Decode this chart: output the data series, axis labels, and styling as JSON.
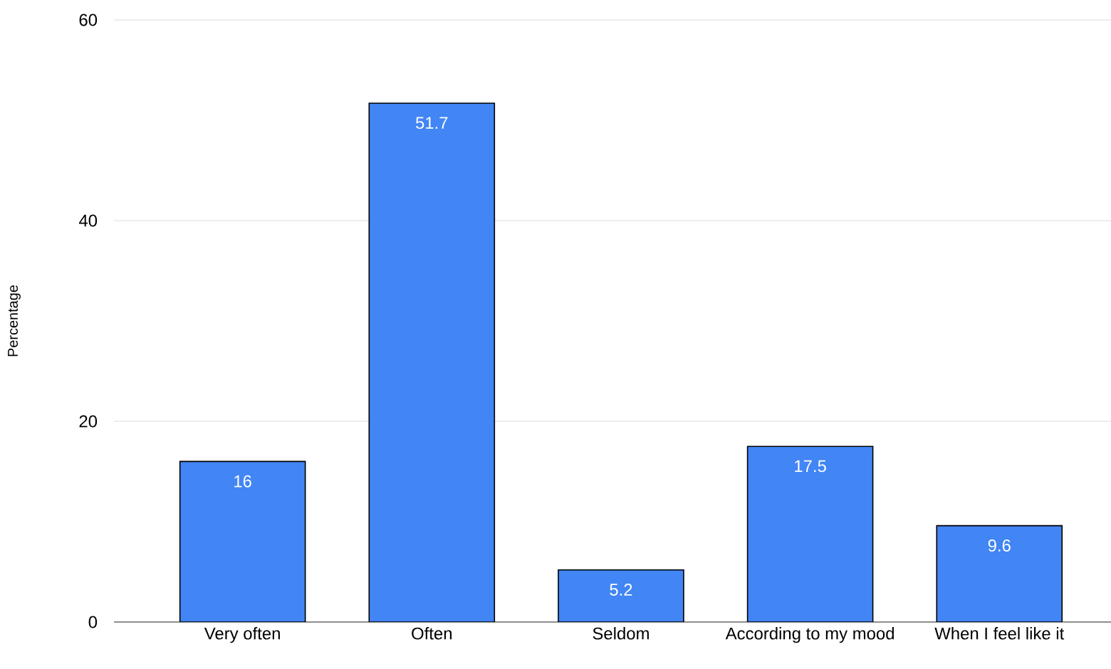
{
  "chart_data": {
    "type": "bar",
    "ylabel": "Percentage",
    "categories": [
      "Very often",
      "Often",
      "Seldom",
      "According to my mood",
      "When I feel like it"
    ],
    "values": [
      16,
      51.7,
      5.2,
      17.5,
      9.6
    ],
    "color": "#4285f4",
    "ylim": [
      0,
      60
    ],
    "yticks": [
      0,
      20,
      40,
      60
    ],
    "grid": "y",
    "data_labels": true
  }
}
